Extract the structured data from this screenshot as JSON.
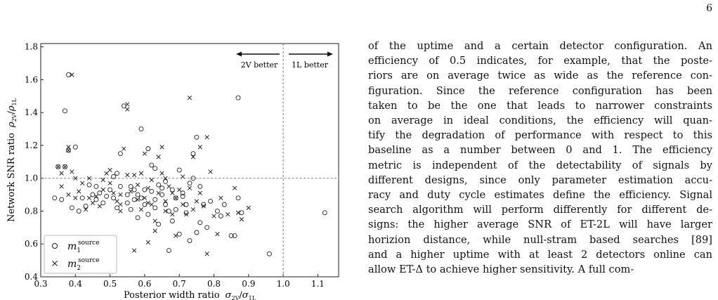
{
  "page": {
    "number": "6"
  },
  "figure": {
    "xlabel_text": "Posterior width ratio",
    "xlabel_math": "σ",
    "xlabel_sub_num": "2V",
    "xlabel_sub_den": "1L",
    "ylabel_text": "Network SNR ratio",
    "ylabel_math": "ρ",
    "ylabel_sub_num": "2V",
    "ylabel_sub_den": "1L",
    "annotations": {
      "left": "2V better",
      "right": "1L better"
    },
    "legend": [
      {
        "marker": "circle",
        "label": "m",
        "sub": "1",
        "sup": "source"
      },
      {
        "marker": "cross",
        "label": "m",
        "sub": "2",
        "sup": "source"
      }
    ]
  },
  "chart_data": {
    "type": "scatter",
    "xlim": [
      0.3,
      1.16
    ],
    "ylim": [
      0.4,
      1.82
    ],
    "xticks": [
      "0.3",
      "0.4",
      "0.5",
      "0.6",
      "0.7",
      "0.8",
      "0.9",
      "1.0",
      "1.1"
    ],
    "yticks": [
      "0.4",
      "0.6",
      "0.8",
      "1.0",
      "1.2",
      "1.4",
      "1.6",
      "1.8"
    ],
    "reference_lines": {
      "x": 1.0,
      "y": 1.0
    },
    "legend_position": "lower-left",
    "series": [
      {
        "name": "m1 source",
        "marker": "circle",
        "points": [
          [
            0.38,
            1.63
          ],
          [
            0.37,
            1.41
          ],
          [
            0.4,
            1.19
          ],
          [
            0.38,
            1.17
          ],
          [
            0.35,
            1.07
          ],
          [
            0.37,
            1.07
          ],
          [
            0.34,
            0.88
          ],
          [
            0.36,
            0.87
          ],
          [
            0.39,
            0.82
          ],
          [
            0.41,
            0.8
          ],
          [
            0.42,
            0.88
          ],
          [
            0.44,
            0.96
          ],
          [
            0.46,
            0.87
          ],
          [
            0.47,
            0.91
          ],
          [
            0.48,
            0.85
          ],
          [
            0.49,
            0.89
          ],
          [
            0.5,
            0.93
          ],
          [
            0.51,
            0.88
          ],
          [
            0.52,
            0.82
          ],
          [
            0.52,
            1.03
          ],
          [
            0.53,
            1.15
          ],
          [
            0.53,
            0.95
          ],
          [
            0.54,
            1.44
          ],
          [
            0.55,
            0.9
          ],
          [
            0.55,
            0.85
          ],
          [
            0.56,
            0.81
          ],
          [
            0.57,
            0.93
          ],
          [
            0.57,
            0.87
          ],
          [
            0.58,
            0.76
          ],
          [
            0.59,
            1.3
          ],
          [
            0.59,
            0.88
          ],
          [
            0.6,
            0.84
          ],
          [
            0.61,
            1.18
          ],
          [
            0.61,
            0.78
          ],
          [
            0.62,
            0.92
          ],
          [
            0.62,
            1.08
          ],
          [
            0.63,
            0.87
          ],
          [
            0.63,
            1.06
          ],
          [
            0.64,
            0.96
          ],
          [
            0.64,
            0.72
          ],
          [
            0.65,
            0.9
          ],
          [
            0.66,
            0.98
          ],
          [
            0.66,
            0.84
          ],
          [
            0.67,
            0.8
          ],
          [
            0.67,
            0.56
          ],
          [
            0.68,
            0.93
          ],
          [
            0.68,
            0.74
          ],
          [
            0.69,
            0.88
          ],
          [
            0.7,
            1.05
          ],
          [
            0.7,
            0.66
          ],
          [
            0.71,
            0.89
          ],
          [
            0.72,
            0.79
          ],
          [
            0.72,
            0.84
          ],
          [
            0.73,
            0.97
          ],
          [
            0.73,
            0.62
          ],
          [
            0.74,
            1.15
          ],
          [
            0.74,
            1.0
          ],
          [
            0.75,
            1.25
          ],
          [
            0.75,
            0.67
          ],
          [
            0.76,
            0.95
          ],
          [
            0.76,
            0.73
          ],
          [
            0.77,
            0.84
          ],
          [
            0.78,
            0.7
          ],
          [
            0.79,
            0.86
          ],
          [
            0.81,
            0.8
          ],
          [
            0.82,
            0.77
          ],
          [
            0.83,
            0.84
          ],
          [
            0.85,
            0.65
          ],
          [
            0.86,
            0.65
          ],
          [
            0.87,
            0.88
          ],
          [
            0.87,
            1.49
          ],
          [
            0.88,
            0.79
          ],
          [
            0.96,
            0.54
          ],
          [
            1.12,
            0.79
          ],
          [
            0.43,
            0.83
          ],
          [
            0.45,
            0.9
          ],
          [
            0.51,
            1.01
          ],
          [
            0.56,
            0.95
          ],
          [
            0.6,
            0.93
          ],
          [
            0.63,
            0.82
          ],
          [
            0.69,
            0.81
          ],
          [
            0.71,
            0.91
          ],
          [
            0.46,
            0.95
          ],
          [
            0.58,
            0.9
          ],
          [
            0.65,
            0.94
          ]
        ]
      },
      {
        "name": "m2 source",
        "marker": "cross",
        "points": [
          [
            0.39,
            1.63
          ],
          [
            0.38,
            1.19
          ],
          [
            0.38,
            1.17
          ],
          [
            0.35,
            1.07
          ],
          [
            0.36,
            1.03
          ],
          [
            0.37,
            1.07
          ],
          [
            0.39,
            1.04
          ],
          [
            0.4,
            1.0
          ],
          [
            0.36,
            0.95
          ],
          [
            0.38,
            0.9
          ],
          [
            0.4,
            0.88
          ],
          [
            0.41,
            0.92
          ],
          [
            0.42,
            0.97
          ],
          [
            0.43,
            0.81
          ],
          [
            0.44,
            0.88
          ],
          [
            0.45,
            0.85
          ],
          [
            0.46,
            0.89
          ],
          [
            0.47,
            0.83
          ],
          [
            0.48,
            0.99
          ],
          [
            0.48,
            0.93
          ],
          [
            0.49,
            1.03
          ],
          [
            0.5,
            0.97
          ],
          [
            0.51,
            0.91
          ],
          [
            0.52,
            0.86
          ],
          [
            0.53,
            0.9
          ],
          [
            0.53,
            0.8
          ],
          [
            0.54,
            1.18
          ],
          [
            0.55,
            1.02
          ],
          [
            0.55,
            1.45
          ],
          [
            0.55,
            1.42
          ],
          [
            0.56,
            0.92
          ],
          [
            0.57,
            1.02
          ],
          [
            0.57,
            0.56
          ],
          [
            0.58,
            0.96
          ],
          [
            0.58,
            0.87
          ],
          [
            0.59,
            1.03
          ],
          [
            0.59,
            0.81
          ],
          [
            0.6,
            0.88
          ],
          [
            0.6,
            1.15
          ],
          [
            0.61,
            0.61
          ],
          [
            0.61,
            0.85
          ],
          [
            0.62,
            0.99
          ],
          [
            0.62,
            0.84
          ],
          [
            0.63,
            0.74
          ],
          [
            0.63,
            0.68
          ],
          [
            0.64,
            1.13
          ],
          [
            0.64,
            0.91
          ],
          [
            0.65,
            1.03
          ],
          [
            0.65,
            1.19
          ],
          [
            0.66,
            0.86
          ],
          [
            0.66,
            1.0
          ],
          [
            0.67,
            0.95
          ],
          [
            0.68,
            0.78
          ],
          [
            0.68,
            0.91
          ],
          [
            0.69,
            0.65
          ],
          [
            0.69,
            0.88
          ],
          [
            0.7,
            0.93
          ],
          [
            0.71,
            1.01
          ],
          [
            0.72,
            0.78
          ],
          [
            0.73,
            0.94
          ],
          [
            0.73,
            1.49
          ],
          [
            0.74,
            1.13
          ],
          [
            0.74,
            0.81
          ],
          [
            0.75,
            0.86
          ],
          [
            0.76,
            1.19
          ],
          [
            0.76,
            0.91
          ],
          [
            0.77,
            0.83
          ],
          [
            0.78,
            1.25
          ],
          [
            0.78,
            0.54
          ],
          [
            0.79,
            1.04
          ],
          [
            0.8,
            0.77
          ],
          [
            0.81,
            0.66
          ],
          [
            0.82,
            0.88
          ],
          [
            0.84,
            0.78
          ],
          [
            0.86,
            0.94
          ],
          [
            0.87,
            0.79
          ],
          [
            0.88,
            0.75
          ],
          [
            0.9,
            0.82
          ],
          [
            0.44,
            1.0
          ],
          [
            0.5,
            1.05
          ],
          [
            0.53,
            0.84
          ],
          [
            0.61,
            0.94
          ],
          [
            0.66,
            0.8
          ],
          [
            0.71,
            0.84
          ]
        ]
      }
    ]
  },
  "body_text": {
    "lines": [
      "of the uptime and a certain detector configuration. An",
      "efficiency of 0.5 indicates, for example, that the poste-",
      "riors are on average twice as wide as the reference con-",
      "figuration. Since the reference configuration has been",
      "taken to be the one that leads to narrower constraints",
      "on average in ideal conditions, the efficiency will quan-",
      "tify the degradation of performance with respect to this",
      "baseline as a number between 0 and 1. The efficiency",
      "metric is independent of the detectability of signals by",
      "different designs, since only parameter estimation accu-",
      "racy and duty cycle estimates define the efficiency. Signal",
      "search algorithm will perform differently for different de-",
      "signs: the higher average SNR of ET-2L will have larger",
      "horizion distance, while null-stram based searches [89]",
      "and a higher uptime with at least 2 detectors online can",
      "allow ET-Δ to achieve higher sensitivity. A full com-"
    ]
  },
  "colors": {
    "marker": "#222222",
    "reference_line": "#555555"
  }
}
